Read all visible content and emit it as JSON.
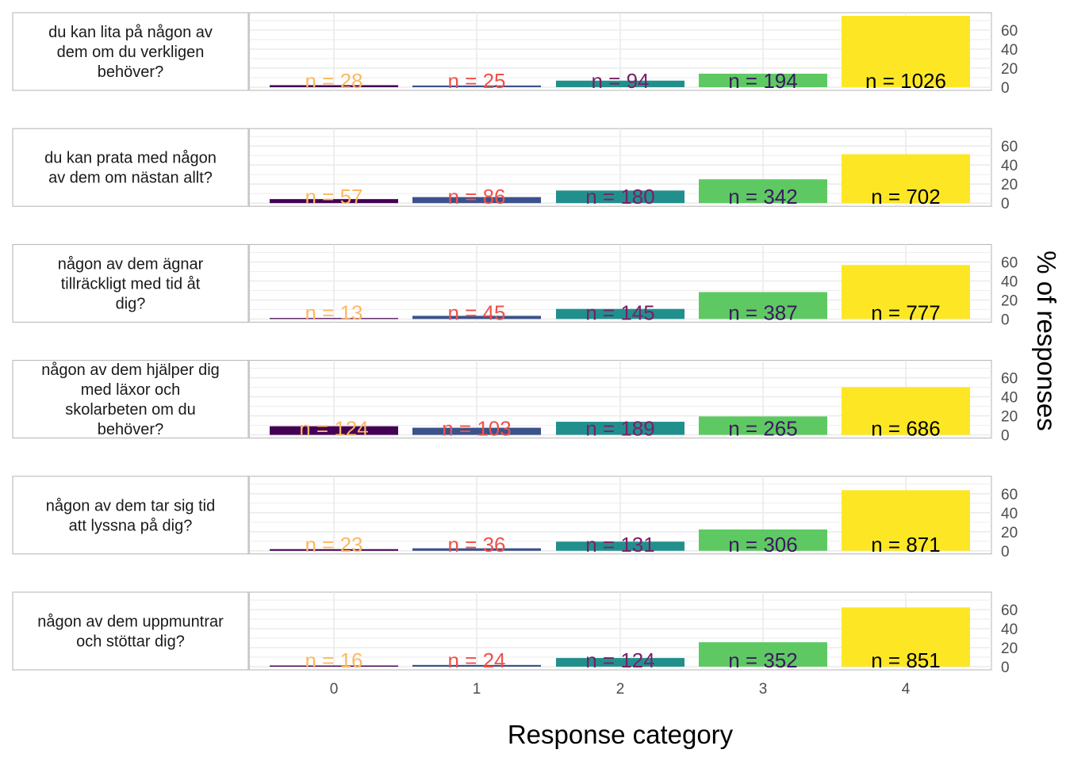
{
  "chart_data": {
    "type": "bar",
    "xlabel": "Response category",
    "ylabel": "% of responses",
    "categories": [
      "0",
      "1",
      "2",
      "3",
      "4"
    ],
    "y_ticks": [
      0,
      20,
      40,
      60
    ],
    "ylim": [
      0,
      75
    ],
    "grid": true,
    "colors": [
      "#440154",
      "#3b528b",
      "#21908c",
      "#5ec962",
      "#fde725"
    ],
    "label_colors": [
      "#fdb863",
      "#f0504a",
      "#7a1f6b",
      "#3b1960",
      "#000000"
    ],
    "panels": [
      {
        "question": "du kan lita på någon av dem om du verkligen behöver?",
        "lines": [
          "du kan lita på någon av",
          "dem om du verkligen",
          "behöver?"
        ],
        "n": [
          28,
          25,
          94,
          194,
          1026
        ],
        "n_labels": [
          "n = 28",
          "n = 25",
          "n = 94",
          "n = 194",
          "n = 1026"
        ],
        "values": [
          2.1,
          1.8,
          6.9,
          14.2,
          75.0
        ]
      },
      {
        "question": "du kan prata med någon av dem om nästan allt?",
        "lines": [
          "du kan prata med någon",
          "av dem om nästan allt?"
        ],
        "n": [
          57,
          86,
          180,
          342,
          702
        ],
        "n_labels": [
          "n = 57",
          "n = 86",
          "n = 180",
          "n = 342",
          "n = 702"
        ],
        "values": [
          4.2,
          6.3,
          13.2,
          25.0,
          51.4
        ]
      },
      {
        "question": "någon av dem ägnar tillräckligt med tid åt dig?",
        "lines": [
          "någon av dem ägnar",
          "tillräckligt med tid åt",
          "dig?"
        ],
        "n": [
          13,
          45,
          145,
          387,
          777
        ],
        "n_labels": [
          "n = 13",
          "n = 45",
          "n = 145",
          "n = 387",
          "n = 777"
        ],
        "values": [
          1.0,
          3.3,
          10.6,
          28.3,
          56.8
        ]
      },
      {
        "question": "någon av dem hjälper dig med läxor och skolarbeten om du behöver?",
        "lines": [
          "någon av dem hjälper dig",
          "med läxor och",
          "skolarbeten om du",
          "behöver?"
        ],
        "n": [
          124,
          103,
          189,
          265,
          686
        ],
        "n_labels": [
          "n = 124",
          "n = 103",
          "n = 189",
          "n = 265",
          "n = 686"
        ],
        "values": [
          9.1,
          7.5,
          13.8,
          19.4,
          50.2
        ]
      },
      {
        "question": "någon av dem tar sig tid att lyssna på dig?",
        "lines": [
          "någon av dem tar sig tid",
          "att lyssna på dig?"
        ],
        "n": [
          23,
          36,
          131,
          306,
          871
        ],
        "n_labels": [
          "n = 23",
          "n = 36",
          "n = 131",
          "n = 306",
          "n = 871"
        ],
        "values": [
          1.7,
          2.6,
          9.6,
          22.4,
          63.7
        ]
      },
      {
        "question": "någon av dem uppmuntrar och stöttar dig?",
        "lines": [
          "någon av dem uppmuntrar",
          "och stöttar dig?"
        ],
        "n": [
          16,
          24,
          124,
          352,
          851
        ],
        "n_labels": [
          "n = 16",
          "n = 24",
          "n = 124",
          "n = 352",
          "n = 851"
        ],
        "values": [
          1.2,
          1.8,
          9.1,
          25.7,
          62.3
        ]
      }
    ]
  }
}
